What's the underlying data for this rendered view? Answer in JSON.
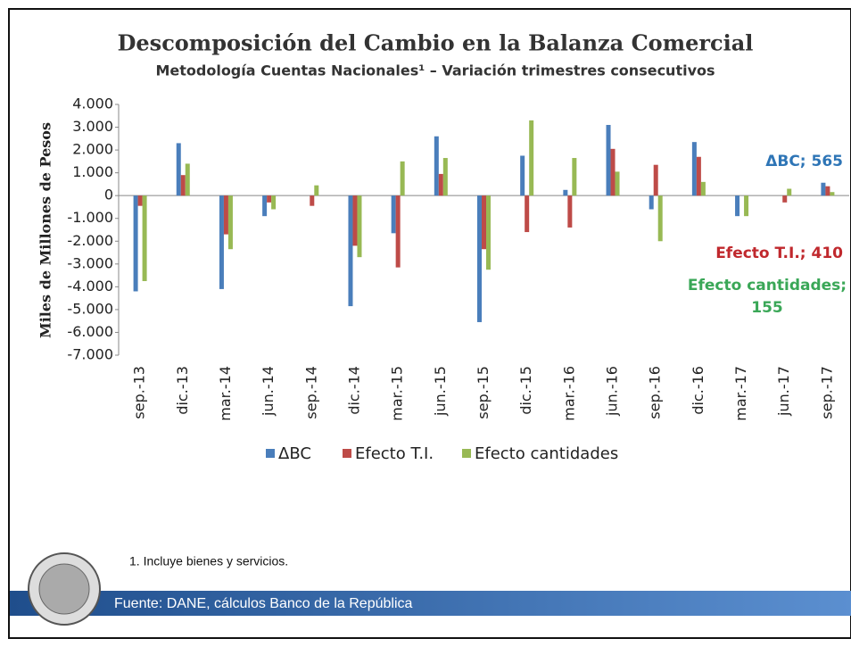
{
  "chart_data": {
    "type": "bar",
    "title": "Descomposición del Cambio en la Balanza Comercial",
    "subtitle": "Metodología Cuentas Nacionales¹ – Variación trimestres consecutivos",
    "y_label": "Miles de Millones de Pesos",
    "categories": [
      "sep.-13",
      "dic.-13",
      "mar.-14",
      "jun.-14",
      "sep.-14",
      "dic.-14",
      "mar.-15",
      "jun.-15",
      "sep.-15",
      "dic.-15",
      "mar.-16",
      "jun.-16",
      "sep.-16",
      "dic.-16",
      "mar.-17",
      "jun.-17",
      "sep.-17"
    ],
    "series": [
      {
        "name": "ΔBC",
        "color": "#4a7ebb",
        "values": [
          -4200,
          2300,
          -4100,
          -900,
          0,
          -4850,
          -1650,
          2600,
          -5550,
          1750,
          250,
          3100,
          -600,
          2350,
          -900,
          0,
          565
        ]
      },
      {
        "name": "Efecto T.I.",
        "color": "#be4b48",
        "values": [
          -450,
          900,
          -1700,
          -300,
          -450,
          -2200,
          -3150,
          950,
          -2350,
          -1600,
          -1400,
          2050,
          1350,
          1700,
          0,
          -300,
          410
        ]
      },
      {
        "name": "Efecto cantidades",
        "color": "#98b954",
        "values": [
          -3750,
          1400,
          -2350,
          -600,
          450,
          -2700,
          1500,
          1650,
          -3250,
          3300,
          1650,
          1050,
          -2000,
          600,
          -900,
          300,
          155
        ]
      }
    ],
    "ylim": [
      -7000,
      4000
    ],
    "yticks": [
      {
        "value": 4000,
        "label": "4.000"
      },
      {
        "value": 3000,
        "label": "3.000"
      },
      {
        "value": 2000,
        "label": "2.000"
      },
      {
        "value": 1000,
        "label": "1.000"
      },
      0,
      {
        "value": -1000,
        "label": "-1.000"
      },
      {
        "value": -2000,
        "label": "-2.000"
      },
      {
        "value": -3000,
        "label": "-3.000"
      },
      {
        "value": -4000,
        "label": "-4.000"
      },
      {
        "value": -5000,
        "label": "-5.000"
      },
      {
        "value": -6000,
        "label": "-6.000"
      },
      {
        "value": -7000,
        "label": "-7.000"
      }
    ],
    "legend": "bottom",
    "annotations": [
      {
        "lines": [
          "ΔBC; 565"
        ],
        "color": "#2e75b6"
      },
      {
        "lines": [
          "Efecto T.I.; 410"
        ],
        "color": "#c0282d"
      },
      {
        "lines": [
          "Efecto cantidades;",
          "155"
        ],
        "color": "#3aa757"
      }
    ]
  },
  "footnote": "1. Incluye bienes y servicios.",
  "footer": "Fuente: DANE, cálculos Banco de la República"
}
